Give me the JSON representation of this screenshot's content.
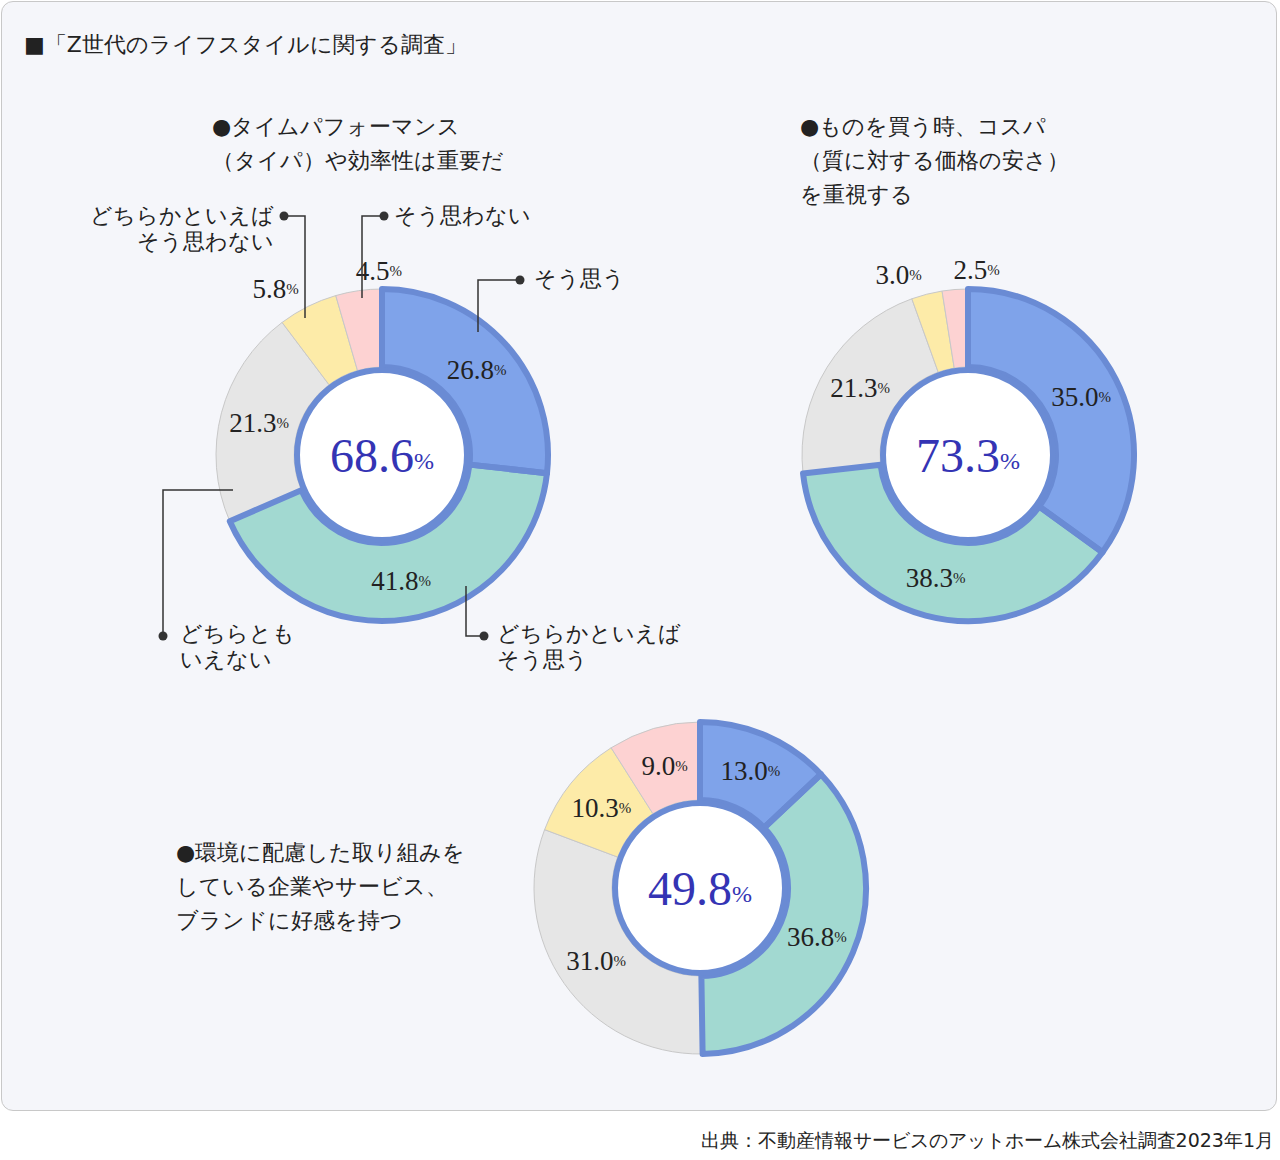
{
  "title": "■「Z世代のライフスタイルに関する調査」",
  "source": "出典：不動産情報サービスのアットホーム株式会社調査2023年1月",
  "chart_data": [
    {
      "type": "pie",
      "title": "●タイムパフォーマンス\n（タイパ）や効率性は重要だ",
      "categories": [
        "そう思う",
        "どちらかといえば\nそう思う",
        "どちらとも\nいえない",
        "どちらかといえば\nそう思わない",
        "そう思わない"
      ],
      "values": [
        26.8,
        41.8,
        21.3,
        5.8,
        4.5
      ],
      "value_labels": [
        "26.8%",
        "41.8%",
        "21.3%",
        "5.8%",
        "4.5%"
      ],
      "colors": [
        "#7fa3ea",
        "#a2d9d1",
        "#e6e6e6",
        "#fdeba8",
        "#fdd2d2"
      ],
      "data_labels": true,
      "center": {
        "value": 68.6,
        "label": "68.6%"
      }
    },
    {
      "type": "pie",
      "title": "●ものを買う時、コスパ\n（質に対する価格の安さ）\nを重視する",
      "values": [
        35.0,
        38.3,
        21.3,
        3.0,
        2.5
      ],
      "value_labels": [
        "35.0%",
        "38.3%",
        "21.3%",
        "3.0%",
        "2.5%"
      ],
      "colors": [
        "#7fa3ea",
        "#a2d9d1",
        "#e6e6e6",
        "#fdeba8",
        "#fdd2d2"
      ],
      "data_labels": true,
      "center": {
        "value": 73.3,
        "label": "73.3%"
      }
    },
    {
      "type": "pie",
      "title": "●環境に配慮した取り組みを\nしている企業やサービス、\nブランドに好感を持つ",
      "values": [
        13.0,
        36.8,
        31.0,
        10.3,
        9.0
      ],
      "value_labels": [
        "13.0%",
        "36.8%",
        "31.0%",
        "10.3%",
        "9.0%"
      ],
      "colors": [
        "#7fa3ea",
        "#a2d9d1",
        "#e6e6e6",
        "#fdeba8",
        "#fdd2d2"
      ],
      "data_labels": true,
      "center": {
        "value": 49.8,
        "label": "49.8%"
      }
    }
  ]
}
